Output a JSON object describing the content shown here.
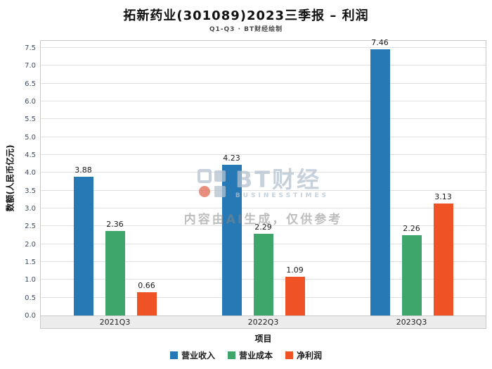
{
  "header": {
    "title": "拓新药业(301089)2023三季报 – 利润",
    "subtitle": "Q1-Q3 · BT财经绘制"
  },
  "chart_data": {
    "type": "bar",
    "title": "拓新药业(301089)2023三季报 – 利润",
    "subtitle": "Q1-Q3 · BT财经绘制",
    "categories": [
      "2021Q3",
      "2022Q3",
      "2023Q3"
    ],
    "series": [
      {
        "name": "营业收入",
        "color": "#2679B5",
        "values": [
          3.88,
          4.23,
          7.46
        ]
      },
      {
        "name": "营业成本",
        "color": "#3EA66B",
        "values": [
          2.36,
          2.29,
          2.26
        ]
      },
      {
        "name": "净利润",
        "color": "#EF5225",
        "values": [
          0.66,
          1.09,
          3.13
        ]
      }
    ],
    "xlabel": "项目",
    "ylabel": "数额(人民币亿元)",
    "ylim": [
      0,
      7.7
    ],
    "yticks": [
      "0.0",
      "0.5",
      "1.0",
      "1.5",
      "2.0",
      "2.5",
      "3.0",
      "3.5",
      "4.0",
      "4.5",
      "5.0",
      "5.5",
      "6.0",
      "6.5",
      "7.0",
      "7.5"
    ],
    "grid": true,
    "legend_position": "bottom"
  },
  "watermark": {
    "logo_text": "BT财经",
    "logo_subtext": "BUSINESSTIMES",
    "disclaimer": "内容由AI生成，仅供参考"
  }
}
